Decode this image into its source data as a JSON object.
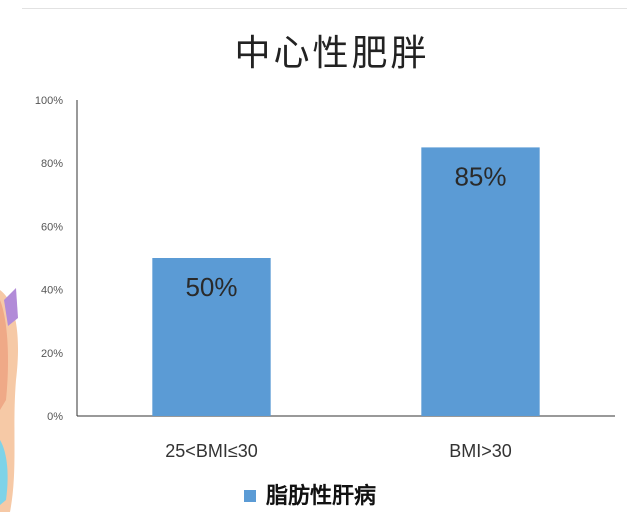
{
  "colors": {
    "bar": "#5B9BD5",
    "axis": "#333333",
    "background": "#ffffff"
  },
  "chart_data": {
    "type": "bar",
    "title": "中心性肥胖",
    "categories": [
      "25<BMI≤30",
      "BMI>30"
    ],
    "series": [
      {
        "name": "脂肪性肝病",
        "values": [
          50,
          85
        ],
        "data_labels": [
          "50%",
          "85%"
        ]
      }
    ],
    "y_ticks": [
      "0%",
      "20%",
      "40%",
      "60%",
      "80%",
      "100%"
    ],
    "ylim": [
      0,
      100
    ],
    "grid": false,
    "legend": "bottom"
  }
}
